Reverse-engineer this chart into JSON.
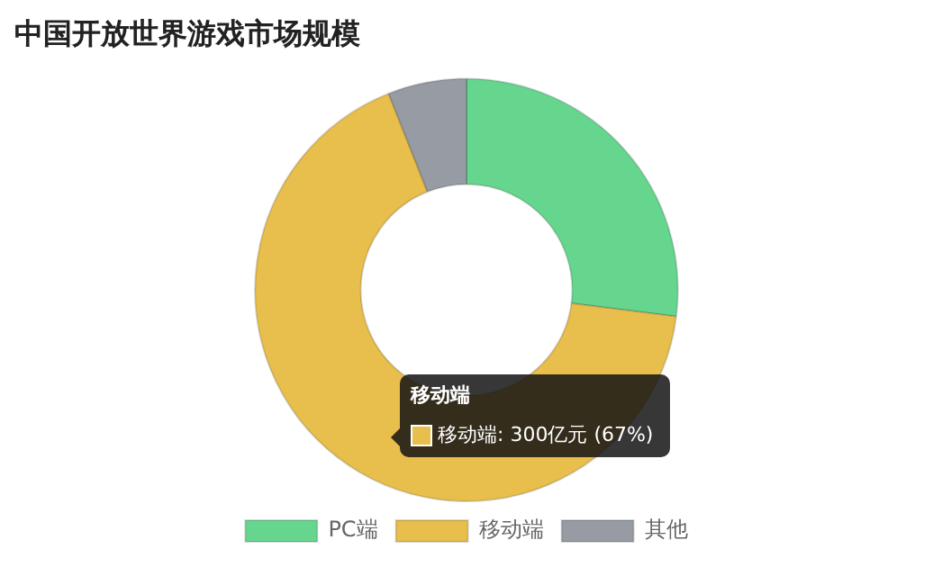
{
  "chart_data": {
    "type": "donut",
    "title": "中国开放世界游戏市场规模",
    "categories": [
      "PC端",
      "移动端",
      "其他"
    ],
    "values": [
      27,
      67,
      6
    ],
    "colors": [
      "#66d68f",
      "#e8be4c",
      "#979ba4"
    ],
    "legend": "bottom",
    "annotations": [
      "移动端",
      "移动端: 300亿元 (67%)"
    ]
  }
}
